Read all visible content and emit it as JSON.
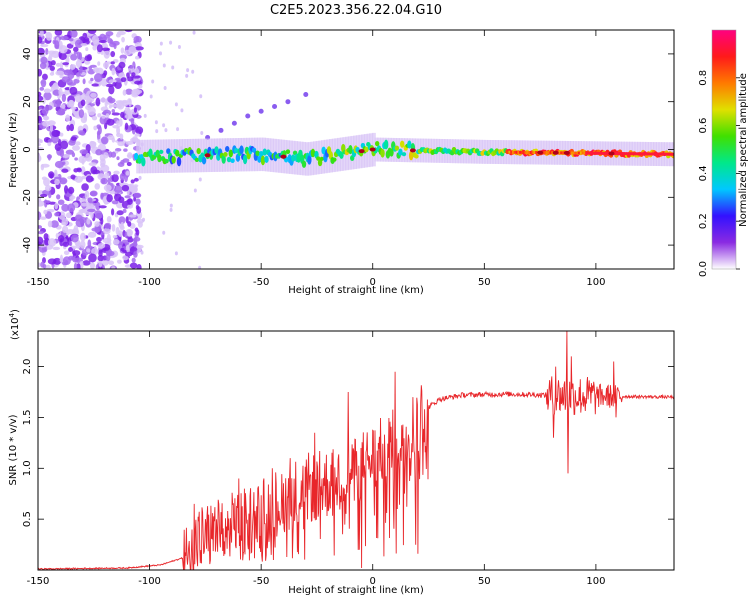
{
  "title": "C2E5.2023.356.22.04.G10",
  "colorbar": {
    "label": "Normalized spectral amplitude",
    "ticks": [
      "0.0",
      "0.2",
      "0.4",
      "0.6",
      "0.8"
    ],
    "tick_values": [
      0.0,
      0.2,
      0.4,
      0.6,
      0.8
    ],
    "range": [
      0,
      1
    ],
    "colormap": [
      "#ffffff",
      "#8a2be2",
      "#3311ff",
      "#00c8ff",
      "#00e88a",
      "#40e000",
      "#e0e000",
      "#ff7a00",
      "#ff1a1a",
      "#ff0080"
    ]
  },
  "chart_data": [
    {
      "type": "heatmap",
      "name": "spectrogram",
      "xlabel": "Height of straight line (km)",
      "ylabel": "Frequency (Hz)",
      "xlim": [
        -150,
        135
      ],
      "ylim": [
        -50,
        50
      ],
      "xticks": [
        -150,
        -100,
        -50,
        0,
        50,
        100
      ],
      "xtick_labels": [
        "-150",
        "-100",
        "-50",
        "0",
        "50",
        "100"
      ],
      "yticks": [
        -40,
        -20,
        0,
        20,
        40
      ],
      "ytick_labels": [
        "-40",
        "-20",
        "0",
        "20",
        "40"
      ],
      "description_points": {
        "noise_region_x": [
          -150,
          -106
        ],
        "signal_start_x": -106,
        "line_trend": [
          [
            -106,
            -3
          ],
          [
            -50,
            -2
          ],
          [
            -30,
            -4
          ],
          [
            0,
            0
          ],
          [
            50,
            -1
          ],
          [
            135,
            -2
          ]
        ],
        "streak": [
          [
            -74,
            5
          ],
          [
            -68,
            8
          ],
          [
            -62,
            11
          ],
          [
            -56,
            14
          ],
          [
            -50,
            16
          ],
          [
            -44,
            18
          ],
          [
            -38,
            20
          ],
          [
            -30,
            23
          ]
        ]
      }
    },
    {
      "type": "line",
      "name": "snr",
      "xlabel": "Height of straight line (km)",
      "ylabel": "SNR (10 * v/v)",
      "scale_label": "(x10",
      "scale_exp": "4",
      "scale_close": ")",
      "xlim": [
        -150,
        135
      ],
      "ylim": [
        0,
        2.35
      ],
      "xticks": [
        -150,
        -100,
        -50,
        0,
        50,
        100
      ],
      "xtick_labels": [
        "-150",
        "-100",
        "-50",
        "0",
        "50",
        "100"
      ],
      "yticks": [
        0.5,
        1.0,
        1.5,
        2.0
      ],
      "ytick_labels": [
        "0.5",
        "1.0",
        "1.5",
        "2.0"
      ],
      "color": "#e8262a",
      "envelope": [
        [
          -150,
          0.01
        ],
        [
          -110,
          0.02
        ],
        [
          -95,
          0.05
        ],
        [
          -85,
          0.12
        ],
        [
          -78,
          0.3
        ],
        [
          -70,
          0.35
        ],
        [
          -60,
          0.45
        ],
        [
          -50,
          0.55
        ],
        [
          -40,
          0.7
        ],
        [
          -30,
          0.8
        ],
        [
          -20,
          0.85
        ],
        [
          -10,
          0.95
        ],
        [
          0,
          1.1
        ],
        [
          10,
          1.25
        ],
        [
          20,
          1.45
        ],
        [
          25,
          1.6
        ],
        [
          30,
          1.68
        ],
        [
          40,
          1.72
        ],
        [
          60,
          1.73
        ],
        [
          80,
          1.72
        ],
        [
          100,
          1.71
        ],
        [
          135,
          1.7
        ]
      ],
      "features": [
        {
          "x": -80,
          "y": 0.65
        },
        {
          "x": -75,
          "y": 0.5
        },
        {
          "x": -60,
          "y": 0.9
        },
        {
          "x": -45,
          "y": 1.0
        },
        {
          "x": -37,
          "y": 1.1
        },
        {
          "x": -26,
          "y": 1.35
        },
        {
          "x": -11,
          "y": 1.75
        },
        {
          "x": -5,
          "y": 0.02
        },
        {
          "x": 10,
          "y": 1.95
        },
        {
          "x": 11,
          "y": 0.6
        },
        {
          "x": 18,
          "y": 1.7
        },
        {
          "x": 81,
          "y": 1.3
        },
        {
          "x": 82,
          "y": 2.0
        },
        {
          "x": 87,
          "y": 2.35
        },
        {
          "x": 87.5,
          "y": 0.95
        },
        {
          "x": 89,
          "y": 2.1
        },
        {
          "x": 108,
          "y": 2.05
        },
        {
          "x": 109,
          "y": 1.5
        }
      ]
    }
  ]
}
